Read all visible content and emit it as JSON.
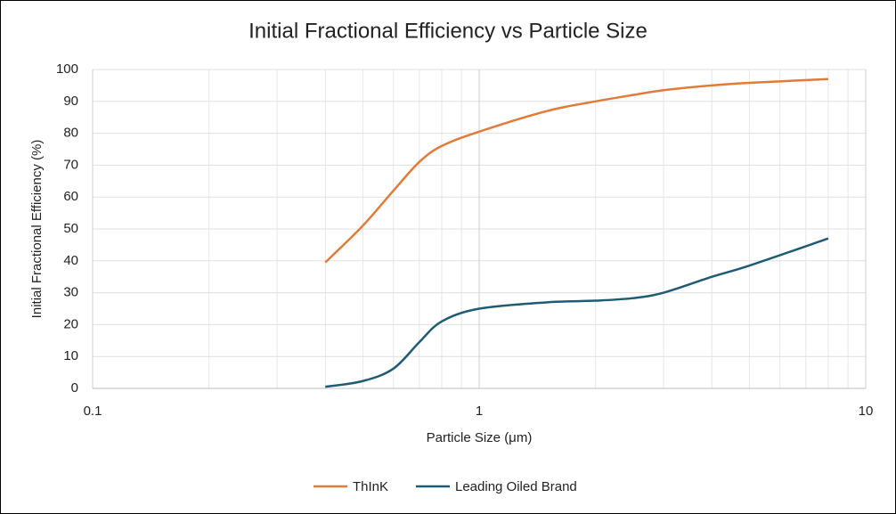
{
  "chart_data": {
    "type": "line",
    "title": "Initial Fractional Efficiency vs Particle Size",
    "x_label": "Particle Size (μm)",
    "y_label": "Initial Fractional Efficiency (%)",
    "x_log": true,
    "grid": true,
    "minor_grid": true,
    "legend": "bottom",
    "xlim": [
      0.1,
      10
    ],
    "xticks": [
      0.1,
      1,
      10
    ],
    "ylim": [
      0,
      100
    ],
    "yticks": [
      0,
      10,
      20,
      30,
      40,
      50,
      60,
      70,
      80,
      90,
      100
    ],
    "x": [
      0.4,
      0.5,
      0.6,
      0.7,
      0.8,
      1,
      1.5,
      2,
      2.5,
      3,
      4,
      5,
      8
    ],
    "series": [
      {
        "name": "ThInK",
        "color": "#e07b39",
        "values": [
          39.5,
          51,
          62,
          71,
          76,
          80.5,
          87,
          90,
          92,
          93.5,
          95,
          95.8,
          97
        ]
      },
      {
        "name": "Leading Oiled Brand",
        "color": "#1f5c74",
        "values": [
          0.5,
          2.3,
          6.2,
          14.5,
          21,
          25,
          27,
          27.5,
          28.3,
          30,
          35,
          38.5,
          47
        ]
      }
    ]
  }
}
